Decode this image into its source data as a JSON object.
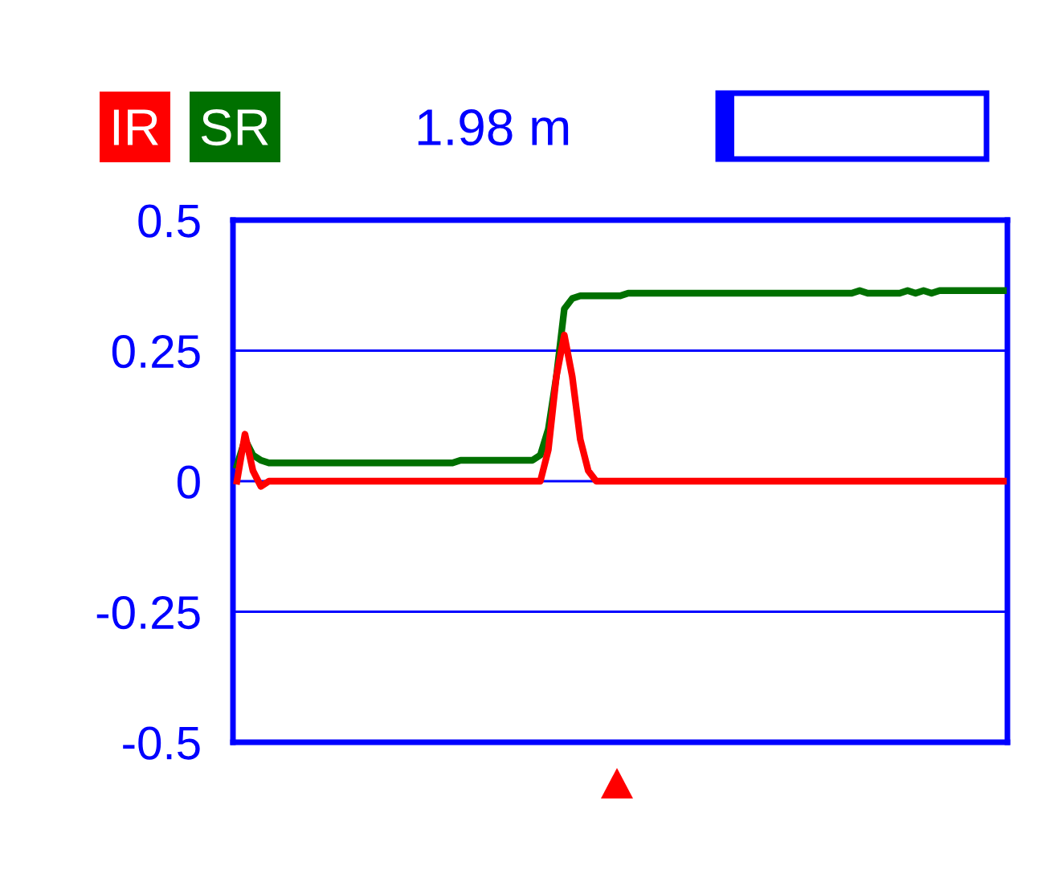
{
  "chart_data": {
    "type": "line",
    "categories": [
      null,
      null,
      null,
      null,
      null,
      null,
      null,
      null,
      null,
      null,
      null,
      null,
      null,
      null,
      null,
      null,
      null,
      null,
      null,
      null,
      null,
      null,
      null,
      null,
      null,
      null,
      null,
      null,
      null,
      null,
      null,
      null,
      null,
      null,
      null,
      null,
      null,
      null,
      null,
      null,
      null,
      null,
      null,
      null,
      null,
      null,
      null,
      null,
      null,
      null,
      null,
      null,
      null,
      null,
      null,
      null,
      null,
      null,
      null,
      null,
      null,
      null,
      null,
      null,
      null,
      null,
      null,
      null,
      null,
      null,
      null,
      null,
      null,
      null,
      null,
      null,
      null,
      null,
      null,
      null,
      null,
      null,
      null,
      null,
      null,
      null,
      null,
      null,
      null,
      null,
      null,
      null,
      null,
      null,
      null,
      null,
      null
    ],
    "series": [
      {
        "name": "SR",
        "color": "#007000",
        "values": [
          0.03,
          0.08,
          0.05,
          0.04,
          0.035,
          0.035,
          0.035,
          0.035,
          0.035,
          0.035,
          0.035,
          0.035,
          0.035,
          0.035,
          0.035,
          0.035,
          0.035,
          0.035,
          0.035,
          0.035,
          0.035,
          0.035,
          0.035,
          0.035,
          0.035,
          0.035,
          0.035,
          0.035,
          0.04,
          0.04,
          0.04,
          0.04,
          0.04,
          0.04,
          0.04,
          0.04,
          0.04,
          0.04,
          0.05,
          0.1,
          0.2,
          0.33,
          0.35,
          0.355,
          0.355,
          0.355,
          0.355,
          0.355,
          0.355,
          0.36,
          0.36,
          0.36,
          0.36,
          0.36,
          0.36,
          0.36,
          0.36,
          0.36,
          0.36,
          0.36,
          0.36,
          0.36,
          0.36,
          0.36,
          0.36,
          0.36,
          0.36,
          0.36,
          0.36,
          0.36,
          0.36,
          0.36,
          0.36,
          0.36,
          0.36,
          0.36,
          0.36,
          0.36,
          0.365,
          0.36,
          0.36,
          0.36,
          0.36,
          0.36,
          0.365,
          0.36,
          0.365,
          0.36,
          0.365,
          0.365,
          0.365,
          0.365,
          0.365,
          0.365,
          0.365,
          0.365,
          0.365
        ]
      },
      {
        "name": "IR",
        "color": "#ff0000",
        "values": [
          0.0,
          0.09,
          0.02,
          -0.01,
          0.0,
          0,
          0,
          0,
          0,
          0,
          0,
          0,
          0,
          0,
          0,
          0,
          0,
          0,
          0,
          0,
          0,
          0,
          0,
          0,
          0,
          0,
          0,
          0,
          0,
          0,
          0,
          0,
          0,
          0,
          0,
          0,
          0,
          0,
          0.0,
          0.06,
          0.2,
          0.28,
          0.2,
          0.08,
          0.02,
          0.0,
          0,
          0,
          0,
          0,
          0,
          0,
          0,
          0,
          0,
          0,
          0,
          0,
          0,
          0,
          0,
          0,
          0,
          0,
          0,
          0,
          0,
          0,
          0,
          0,
          0,
          0,
          0,
          0,
          0,
          0,
          0,
          0,
          0,
          0,
          0,
          0,
          0,
          0,
          0,
          0,
          0,
          0,
          0,
          0,
          0,
          0,
          0,
          0,
          0,
          0,
          0
        ]
      }
    ],
    "ylim": [
      -0.5,
      0.5
    ],
    "yticks": [
      -0.5,
      -0.25,
      0,
      0.25,
      0.5
    ],
    "grid": "y",
    "legend": "top left",
    "tick_labels": "y",
    "annotations": [
      "1.98 m"
    ]
  }
}
